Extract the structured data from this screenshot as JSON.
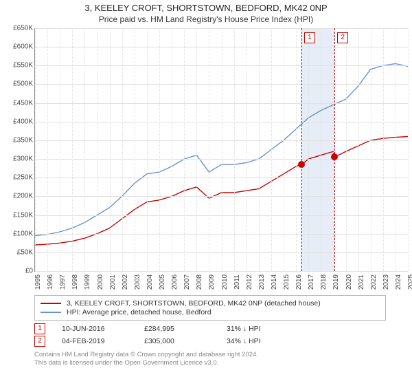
{
  "title": "3, KEELEY CROFT, SHORTSTOWN, BEDFORD, MK42 0NP",
  "subtitle": "Price paid vs. HM Land Registry's House Price Index (HPI)",
  "chart": {
    "type": "line",
    "background_color": "#ffffff",
    "grid_color": "#e0e0e0",
    "axis_color": "#888888",
    "text_color": "#444444",
    "x_years": [
      1995,
      1996,
      1997,
      1998,
      1999,
      2000,
      2001,
      2002,
      2003,
      2004,
      2005,
      2006,
      2007,
      2008,
      2009,
      2010,
      2011,
      2012,
      2013,
      2014,
      2015,
      2016,
      2017,
      2018,
      2019,
      2020,
      2021,
      2022,
      2023,
      2024,
      2025
    ],
    "xlim": [
      1995,
      2025
    ],
    "ylim": [
      0,
      650000
    ],
    "ytick_step": 50000,
    "y_prefix": "£",
    "y_suffix": "K",
    "label_fontsize": 10,
    "line_width": 1.4,
    "series": [
      {
        "name": "3, KEELEY CROFT, SHORTSTOWN, BEDFORD, MK42 0NP (detached house)",
        "color": "#cc0000",
        "points": [
          [
            1995,
            70000
          ],
          [
            1996,
            72000
          ],
          [
            1997,
            75000
          ],
          [
            1998,
            80000
          ],
          [
            1999,
            88000
          ],
          [
            2000,
            100000
          ],
          [
            2001,
            115000
          ],
          [
            2002,
            140000
          ],
          [
            2003,
            165000
          ],
          [
            2004,
            185000
          ],
          [
            2005,
            190000
          ],
          [
            2006,
            200000
          ],
          [
            2007,
            215000
          ],
          [
            2008,
            225000
          ],
          [
            2009,
            195000
          ],
          [
            2010,
            210000
          ],
          [
            2011,
            210000
          ],
          [
            2012,
            215000
          ],
          [
            2013,
            220000
          ],
          [
            2014,
            240000
          ],
          [
            2015,
            260000
          ],
          [
            2016,
            280000
          ],
          [
            2016.44,
            284995
          ],
          [
            2017,
            300000
          ],
          [
            2018,
            310000
          ],
          [
            2019,
            320000
          ],
          [
            2019.1,
            305000
          ],
          [
            2020,
            320000
          ],
          [
            2021,
            335000
          ],
          [
            2022,
            350000
          ],
          [
            2023,
            355000
          ],
          [
            2024,
            358000
          ],
          [
            2025,
            360000
          ]
        ]
      },
      {
        "name": "HPI: Average price, detached house, Bedford",
        "color": "#6a8fd4",
        "points": [
          [
            1995,
            95000
          ],
          [
            1996,
            98000
          ],
          [
            1997,
            105000
          ],
          [
            1998,
            115000
          ],
          [
            1999,
            130000
          ],
          [
            2000,
            150000
          ],
          [
            2001,
            170000
          ],
          [
            2002,
            200000
          ],
          [
            2003,
            235000
          ],
          [
            2004,
            260000
          ],
          [
            2005,
            265000
          ],
          [
            2006,
            280000
          ],
          [
            2007,
            300000
          ],
          [
            2008,
            310000
          ],
          [
            2009,
            265000
          ],
          [
            2010,
            285000
          ],
          [
            2011,
            285000
          ],
          [
            2012,
            290000
          ],
          [
            2013,
            300000
          ],
          [
            2014,
            325000
          ],
          [
            2015,
            350000
          ],
          [
            2016,
            380000
          ],
          [
            2017,
            410000
          ],
          [
            2018,
            430000
          ],
          [
            2019,
            445000
          ],
          [
            2020,
            460000
          ],
          [
            2021,
            495000
          ],
          [
            2022,
            540000
          ],
          [
            2023,
            550000
          ],
          [
            2024,
            555000
          ],
          [
            2025,
            548000
          ]
        ]
      }
    ],
    "event_band": {
      "start": 2016.44,
      "end": 2019.1,
      "color": "#e6edf7"
    },
    "event_lines": [
      {
        "id": "1",
        "x": 2016.44,
        "color": "#cc0000"
      },
      {
        "id": "2",
        "x": 2019.1,
        "color": "#cc0000"
      }
    ],
    "transaction_points": [
      {
        "x": 2016.44,
        "y": 284995
      },
      {
        "x": 2019.1,
        "y": 305000
      }
    ]
  },
  "legend": {
    "items": [
      {
        "color": "#cc0000",
        "label": "3, KEELEY CROFT, SHORTSTOWN, BEDFORD, MK42 0NP (detached house)"
      },
      {
        "color": "#6a8fd4",
        "label": "HPI: Average price, detached house, Bedford"
      }
    ]
  },
  "transactions": {
    "columns": [
      "id",
      "date",
      "price",
      "delta"
    ],
    "rows": [
      {
        "id": "1",
        "date": "10-JUN-2016",
        "price": "£284,995",
        "delta": "31% ↓ HPI"
      },
      {
        "id": "2",
        "date": "04-FEB-2019",
        "price": "£305,000",
        "delta": "34% ↓ HPI"
      }
    ]
  },
  "footer": {
    "line1": "Contains HM Land Registry data © Crown copyright and database right 2024.",
    "line2": "This data is licensed under the Open Government Licence v3.0."
  }
}
